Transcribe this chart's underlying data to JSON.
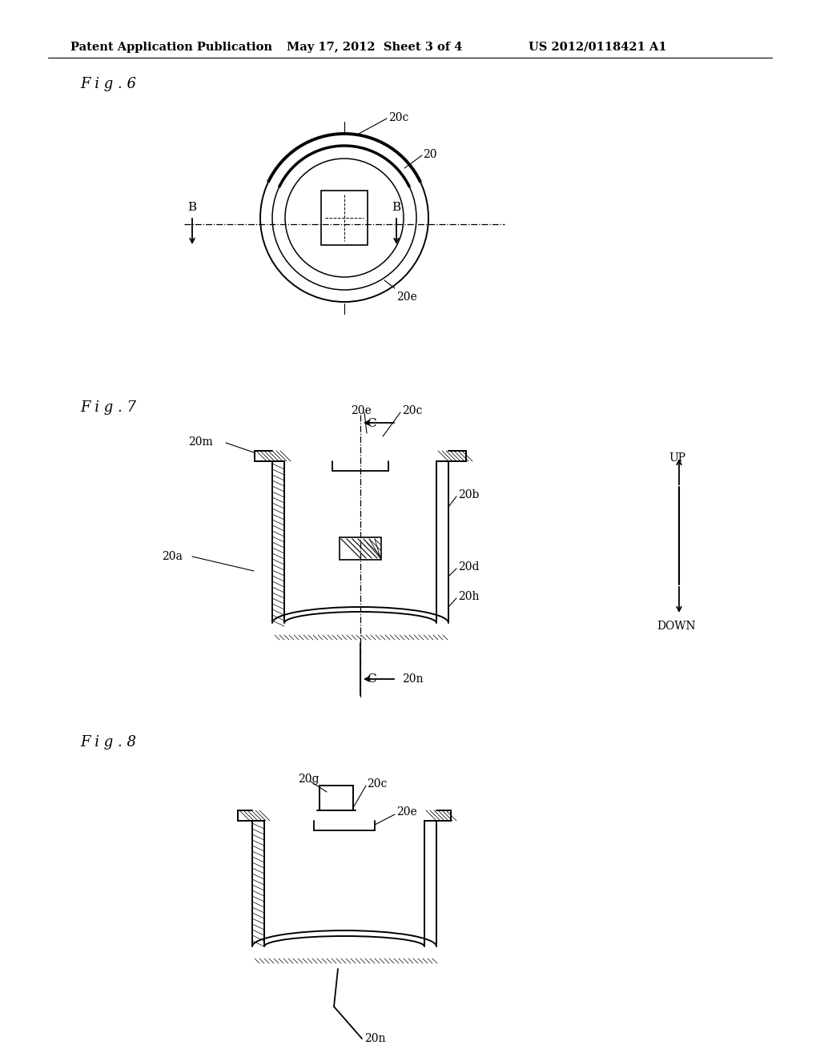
{
  "background_color": "#ffffff",
  "header_text": "Patent Application Publication",
  "header_date": "May 17, 2012  Sheet 3 of 4",
  "header_patent": "US 2012/0118421 A1",
  "fig6_label": "F i g . 6",
  "fig7_label": "F i g . 7",
  "fig8_label": "F i g . 8",
  "line_color": "#000000",
  "text_color": "#000000"
}
